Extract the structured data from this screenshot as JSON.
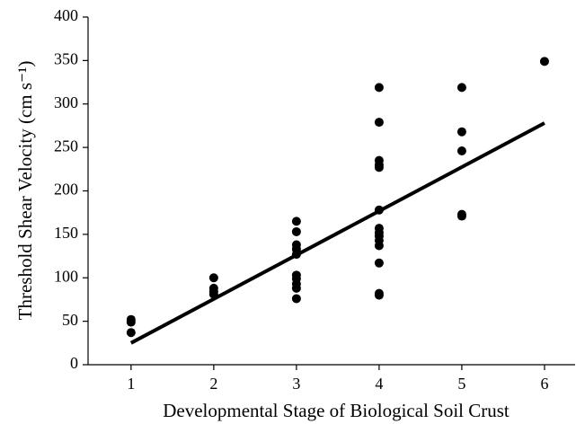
{
  "chart_data": {
    "type": "scatter",
    "xlabel": "Developmental Stage of Biological Soil Crust",
    "ylabel": "Threshold Shear Velocity (cm s⁻¹)",
    "series": [
      {
        "color": "#000000",
        "x": [
          1,
          1,
          1,
          2,
          2,
          2,
          2,
          3,
          3,
          3,
          3,
          3,
          3,
          3,
          3,
          3,
          3,
          4,
          4,
          4,
          4,
          4,
          4,
          4,
          4,
          4,
          4,
          4,
          4,
          4,
          4,
          5,
          5,
          5,
          5,
          5,
          6
        ],
        "y": [
          52,
          49,
          37,
          100,
          88,
          84,
          81,
          165,
          153,
          138,
          133,
          127,
          103,
          99,
          93,
          88,
          76,
          319,
          279,
          235,
          230,
          227,
          178,
          157,
          152,
          148,
          143,
          137,
          117,
          82,
          80,
          319,
          268,
          246,
          173,
          171,
          349
        ]
      }
    ],
    "trendline": {
      "color": "#000000",
      "x": [
        1,
        6
      ],
      "y": [
        25,
        278
      ]
    },
    "xlim": [
      0.48,
      6.37
    ],
    "ylim": [
      0,
      400
    ],
    "xticks": [
      1,
      2,
      3,
      4,
      5,
      6
    ],
    "yticks": [
      0,
      50,
      100,
      150,
      200,
      250,
      300,
      350,
      400
    ]
  }
}
